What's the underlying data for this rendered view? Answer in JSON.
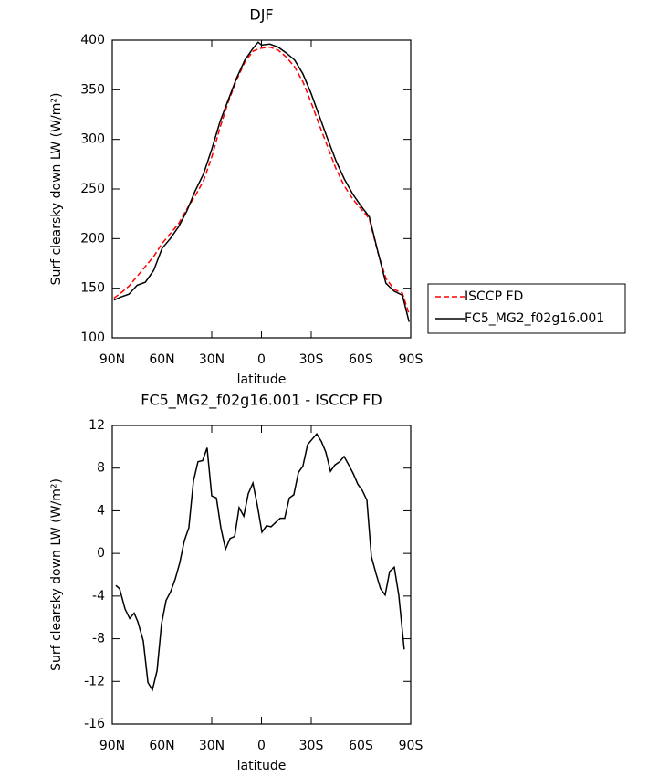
{
  "chart_data": [
    {
      "type": "line",
      "title": "DJF",
      "x_label": "latitude",
      "y_label": "Surf clearsky down LW (W/m²)",
      "x": [
        89,
        85,
        80,
        75,
        70,
        65,
        60,
        55,
        50,
        45,
        40,
        35,
        30,
        25,
        20,
        15,
        10,
        5,
        2,
        0,
        -5,
        -10,
        -15,
        -20,
        -25,
        -30,
        -35,
        -40,
        -45,
        -50,
        -55,
        -60,
        -65,
        -70,
        -75,
        -80,
        -85,
        -89
      ],
      "series": [
        {
          "name": "ISCCP FD",
          "color": "#ff0000",
          "style": "dashed",
          "values": [
            140,
            145,
            152,
            162,
            172,
            182,
            195,
            205,
            215,
            230,
            243,
            258,
            282,
            312,
            338,
            360,
            378,
            389,
            391,
            392,
            393,
            390,
            383,
            373,
            358,
            337,
            314,
            292,
            270,
            253,
            240,
            230,
            220,
            187,
            160,
            149,
            145,
            124
          ]
        },
        {
          "name": "FC5_MG2_f02g16.001",
          "color": "#000000",
          "style": "solid",
          "values": [
            138,
            141,
            144,
            153,
            156,
            168,
            190,
            200,
            212,
            228,
            248,
            265,
            290,
            318,
            340,
            362,
            380,
            392,
            398,
            395,
            396,
            393,
            387,
            380,
            366,
            346,
            323,
            300,
            278,
            260,
            245,
            233,
            222,
            188,
            155,
            147,
            143,
            116
          ]
        }
      ],
      "xlim": [
        90,
        -90
      ],
      "xticks": [
        {
          "value": 90,
          "label": "90N"
        },
        {
          "value": 60,
          "label": "60N"
        },
        {
          "value": 30,
          "label": "30N"
        },
        0,
        {
          "value": -30,
          "label": "30S"
        },
        {
          "value": -60,
          "label": "60S"
        },
        {
          "value": -90,
          "label": "90S"
        }
      ],
      "ylim": [
        100,
        400
      ],
      "yticks": [
        100,
        150,
        200,
        250,
        300,
        350,
        400
      ],
      "legend": "right"
    },
    {
      "type": "line",
      "title": "FC5_MG2_f02g16.001 - ISCCP FD",
      "x_label": "latitude",
      "y_label": "Surf clearsky down LW (W/m²)",
      "x": [
        87.8,
        85.6,
        82.3,
        79.5,
        76.8,
        74.6,
        71.3,
        68.5,
        65.8,
        63.0,
        60.3,
        57.5,
        54.8,
        52.0,
        49.3,
        46.5,
        43.8,
        41.0,
        38.3,
        35.5,
        32.8,
        30.0,
        27.2,
        24.5,
        21.7,
        19.0,
        16.2,
        13.5,
        10.7,
        8.0,
        5.2,
        2.5,
        -0.3,
        -3.0,
        -5.8,
        -8.5,
        -11.3,
        -14.0,
        -16.8,
        -19.5,
        -22.3,
        -25.0,
        -27.8,
        -30.5,
        -33.3,
        -36.1,
        -38.8,
        -41.6,
        -44.3,
        -47.1,
        -49.8,
        -52.6,
        -55.3,
        -58.1,
        -60.8,
        -63.6,
        -66.3,
        -69.1,
        -71.8,
        -74.6,
        -77.3,
        -80.1,
        -82.8,
        -86.1
      ],
      "series": [
        {
          "color": "#000000",
          "style": "solid",
          "values": [
            -3,
            -3.3,
            -5.2,
            -6.1,
            -5.6,
            -6.4,
            -8.2,
            -12.1,
            -12.8,
            -11,
            -6.6,
            -4.4,
            -3.6,
            -2.4,
            -0.9,
            1.2,
            2.4,
            6.8,
            8.6,
            8.7,
            9.9,
            5.4,
            5.2,
            2.4,
            0.4,
            1.4,
            1.6,
            4.3,
            3.5,
            5.6,
            6.6,
            4.5,
            2,
            2.6,
            2.5,
            2.9,
            3.3,
            3.3,
            5.2,
            5.5,
            7.6,
            8.2,
            10.2,
            10.7,
            11.2,
            10.5,
            9.5,
            7.7,
            8.3,
            8.6,
            9.1,
            8.3,
            7.5,
            6.5,
            5.9,
            5,
            -0.3,
            -1.9,
            -3.3,
            -3.9,
            -1.7,
            -1.3,
            -3.9,
            -9
          ]
        }
      ],
      "xlim": [
        90,
        -90
      ],
      "xticks": [
        {
          "value": 90,
          "label": "90N"
        },
        {
          "value": 60,
          "label": "60N"
        },
        {
          "value": 30,
          "label": "30N"
        },
        0,
        {
          "value": -30,
          "label": "30S"
        },
        {
          "value": -60,
          "label": "60S"
        },
        {
          "value": -90,
          "label": "90S"
        }
      ],
      "ylim": [
        -16,
        12
      ],
      "yticks": [
        -16,
        -12,
        -8,
        -4,
        0,
        4,
        8,
        12
      ]
    }
  ]
}
